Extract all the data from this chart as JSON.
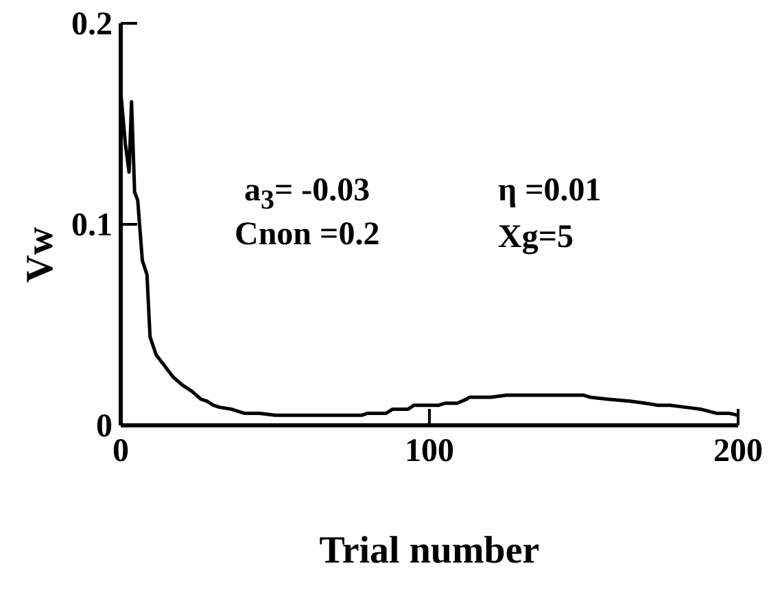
{
  "chart_data": {
    "type": "line",
    "xlabel": "Trial number",
    "ylabel": "Vw",
    "annotations": [
      "a$_{3}$= -0.03",
      "Cnon =0.2",
      "η =0.01",
      "Xg=5"
    ],
    "xlim": [
      0,
      200
    ],
    "xticks": [
      0,
      100,
      200
    ],
    "ylim": [
      0,
      0.2
    ],
    "yticks": [
      0,
      0.1,
      0.2
    ],
    "grid": false,
    "legend": false,
    "marker": "none",
    "line_style": "solid",
    "series": [
      {
        "color": "#000000",
        "x": [
          0,
          1.5,
          2.7,
          3.5,
          4.5,
          5.5,
          7,
          8.5,
          9.5,
          11.5,
          14,
          17,
          20,
          23,
          26,
          28,
          30,
          32,
          36,
          40,
          45,
          50,
          60,
          70,
          78,
          80,
          86,
          88,
          93,
          95,
          103,
          105,
          109,
          112,
          113,
          120,
          125,
          130,
          140,
          150,
          152,
          158,
          165,
          170,
          174,
          178,
          183,
          188,
          193,
          197,
          200
        ],
        "values": [
          0.166,
          0.14,
          0.126,
          0.161,
          0.116,
          0.112,
          0.082,
          0.075,
          0.044,
          0.035,
          0.03,
          0.024,
          0.02,
          0.017,
          0.013,
          0.012,
          0.01,
          0.009,
          0.008,
          0.006,
          0.006,
          0.005,
          0.005,
          0.005,
          0.005,
          0.006,
          0.006,
          0.008,
          0.008,
          0.01,
          0.01,
          0.011,
          0.011,
          0.013,
          0.014,
          0.014,
          0.015,
          0.015,
          0.015,
          0.015,
          0.014,
          0.013,
          0.012,
          0.011,
          0.01,
          0.01,
          0.009,
          0.008,
          0.006,
          0.006,
          0.005
        ]
      }
    ]
  }
}
